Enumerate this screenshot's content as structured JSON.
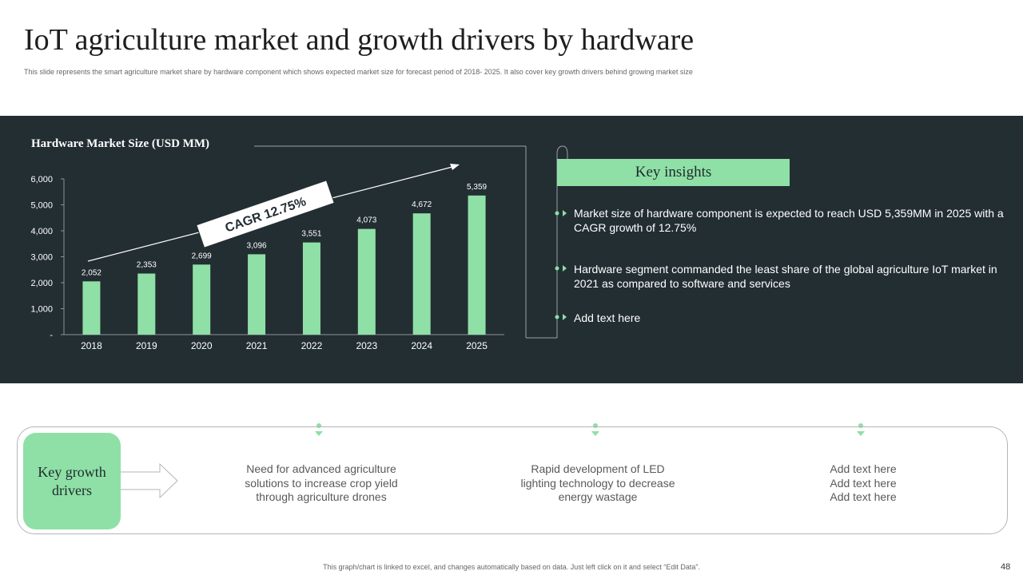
{
  "slide": {
    "title": "IoT agriculture market and growth drivers by hardware",
    "subtitle": "This slide represents the smart agriculture market  share by hardware component which shows expected market size for forecast period of 2018- 2025. It also cover key growth drivers behind growing market size",
    "footer": "This graph/chart is linked to excel, and changes automatically based on data. Just left click on it and select “Edit Data”.",
    "page_number": "48"
  },
  "chart_data": {
    "type": "bar",
    "title": "Hardware Market Size (USD MM)",
    "categories": [
      "2018",
      "2019",
      "2020",
      "2021",
      "2022",
      "2023",
      "2024",
      "2025"
    ],
    "values": [
      2052,
      2353,
      2699,
      3096,
      3551,
      4073,
      4672,
      5359
    ],
    "value_labels": [
      "2,052",
      "2,353",
      "2,699",
      "3,096",
      "3,551",
      "4,073",
      "4,672",
      "5,359"
    ],
    "ylim": [
      0,
      6000
    ],
    "yticks": [
      0,
      1000,
      2000,
      3000,
      4000,
      5000,
      6000
    ],
    "ytick_labels": [
      "-",
      "1,000",
      "2,000",
      "3,000",
      "4,000",
      "5,000",
      "6,000"
    ],
    "xlabel": "",
    "ylabel": "",
    "grid": false,
    "annotation": "CAGR 12.75%",
    "bar_color": "#8fe0a6"
  },
  "insights": {
    "title": "Key insights",
    "items": [
      "Market  size of hardware component is expected to reach USD 5,359MM  in 2025 with a CAGR growth of 12.75%",
      "Hardware segment commanded the least share of the global agriculture IoT market in 2021 as compared to software and services",
      "Add text here"
    ]
  },
  "growth": {
    "label": "Key growth drivers",
    "drivers": [
      "Need for advanced agriculture\nsolutions to increase crop yield\nthrough agriculture drones",
      "Rapid development of LED\nlighting technology to decrease\nenergy wastage",
      "Add text here\nAdd text here\nAdd text here"
    ]
  },
  "colors": {
    "panel": "#232e33",
    "accent": "#8fe0a6"
  }
}
